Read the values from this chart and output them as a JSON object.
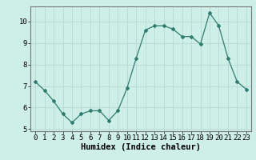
{
  "x": [
    0,
    1,
    2,
    3,
    4,
    5,
    6,
    7,
    8,
    9,
    10,
    11,
    12,
    13,
    14,
    15,
    16,
    17,
    18,
    19,
    20,
    21,
    22,
    23
  ],
  "y": [
    7.2,
    6.8,
    6.3,
    5.7,
    5.3,
    5.7,
    5.85,
    5.85,
    5.4,
    5.85,
    6.9,
    8.3,
    9.6,
    9.8,
    9.8,
    9.65,
    9.3,
    9.3,
    8.95,
    10.4,
    9.8,
    8.3,
    7.2,
    6.85
  ],
  "line_color": "#2e7d6e",
  "marker": "D",
  "marker_size": 2,
  "bg_color": "#ceeee8",
  "grid_color": "#b8d8d4",
  "xlabel": "Humidex (Indice chaleur)",
  "ylim": [
    4.9,
    10.7
  ],
  "xlim": [
    -0.5,
    23.5
  ],
  "yticks": [
    5,
    6,
    7,
    8,
    9,
    10
  ],
  "xticks": [
    0,
    1,
    2,
    3,
    4,
    5,
    6,
    7,
    8,
    9,
    10,
    11,
    12,
    13,
    14,
    15,
    16,
    17,
    18,
    19,
    20,
    21,
    22,
    23
  ],
  "xtick_labels": [
    "0",
    "1",
    "2",
    "3",
    "4",
    "5",
    "6",
    "7",
    "8",
    "9",
    "10",
    "11",
    "12",
    "13",
    "14",
    "15",
    "16",
    "17",
    "18",
    "19",
    "20",
    "21",
    "22",
    "23"
  ],
  "tick_font_size": 6.5,
  "xlabel_fontsize": 7.5,
  "spine_color": "#777777"
}
